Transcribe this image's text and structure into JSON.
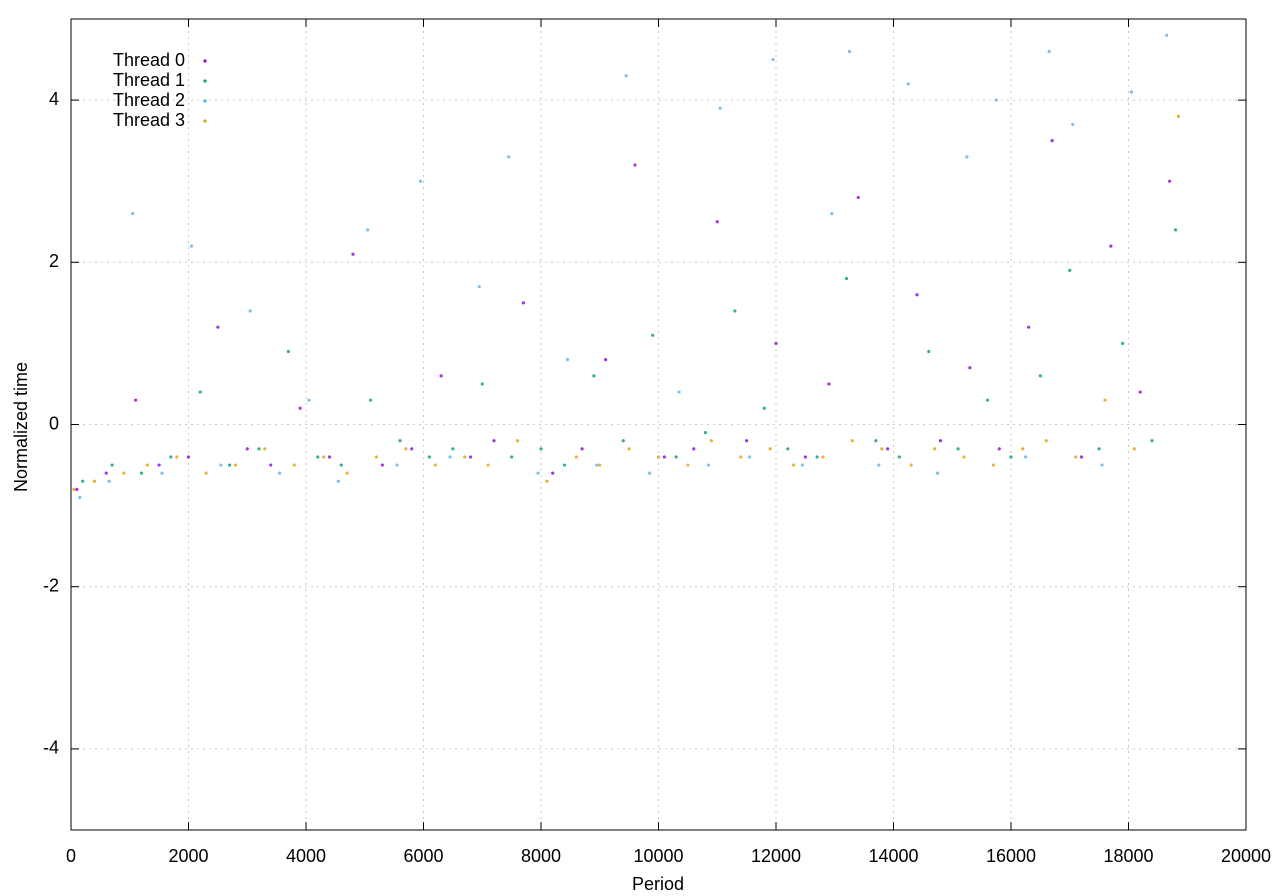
{
  "chart_data": {
    "type": "scatter",
    "xlabel": "Period",
    "ylabel": "Normalized time",
    "xlim": [
      0,
      20000
    ],
    "ylim": [
      -5,
      5
    ],
    "xticks": [
      0,
      2000,
      4000,
      6000,
      8000,
      10000,
      12000,
      14000,
      16000,
      18000,
      20000
    ],
    "yticks": [
      -4,
      -2,
      0,
      2,
      4
    ],
    "grid": true,
    "legend": "top-left",
    "series": [
      {
        "name": "Thread 0",
        "color": "#9400d3",
        "x": [
          100,
          600,
          1100,
          1500,
          2000,
          2500,
          3000,
          3400,
          3900,
          4400,
          4800,
          5300,
          5800,
          6300,
          6800,
          7200,
          7700,
          8200,
          8700,
          9100,
          9600,
          10100,
          10600,
          11000,
          11500,
          12000,
          12500,
          12900,
          13400,
          13900,
          14400,
          14800,
          15300,
          15800,
          16300,
          16700,
          17200,
          17700,
          18200,
          18700
        ],
        "values": [
          -0.8,
          -0.6,
          0.3,
          -0.5,
          -0.4,
          1.2,
          -0.3,
          -0.5,
          0.2,
          -0.4,
          2.1,
          -0.5,
          -0.3,
          0.6,
          -0.4,
          -0.2,
          1.5,
          -0.6,
          -0.3,
          0.8,
          3.2,
          -0.4,
          -0.3,
          2.5,
          -0.2,
          1.0,
          -0.4,
          0.5,
          2.8,
          -0.3,
          1.6,
          -0.2,
          0.7,
          -0.3,
          1.2,
          3.5,
          -0.4,
          2.2,
          0.4,
          3.0
        ]
      },
      {
        "name": "Thread 1",
        "color": "#009e73",
        "x": [
          200,
          700,
          1200,
          1700,
          2200,
          2700,
          3200,
          3700,
          4200,
          4600,
          5100,
          5600,
          6100,
          6500,
          7000,
          7500,
          8000,
          8400,
          8900,
          9400,
          9900,
          10300,
          10800,
          11300,
          11800,
          12200,
          12700,
          13200,
          13700,
          14100,
          14600,
          15100,
          15600,
          16000,
          16500,
          17000,
          17500,
          17900,
          18400,
          18800
        ],
        "values": [
          -0.7,
          -0.5,
          -0.6,
          -0.4,
          0.4,
          -0.5,
          -0.3,
          0.9,
          -0.4,
          -0.5,
          0.3,
          -0.2,
          -0.4,
          -0.3,
          0.5,
          -0.4,
          -0.3,
          -0.5,
          0.6,
          -0.2,
          1.1,
          -0.4,
          -0.1,
          1.4,
          0.2,
          -0.3,
          -0.4,
          1.8,
          -0.2,
          -0.4,
          0.9,
          -0.3,
          0.3,
          -0.4,
          0.6,
          1.9,
          -0.3,
          1.0,
          -0.2,
          2.4
        ]
      },
      {
        "name": "Thread 2",
        "color": "#56b4e9",
        "x": [
          150,
          650,
          1050,
          1550,
          2050,
          2550,
          3050,
          3550,
          4050,
          4550,
          5050,
          5550,
          5950,
          6450,
          6950,
          7450,
          7950,
          8450,
          8950,
          9450,
          9850,
          10350,
          10850,
          11050,
          11550,
          11950,
          12450,
          12950,
          13250,
          13750,
          14250,
          14750,
          15250,
          15750,
          16250,
          16650,
          17050,
          17550,
          18050,
          18650
        ],
        "values": [
          -0.9,
          -0.7,
          2.6,
          -0.6,
          2.2,
          -0.5,
          1.4,
          -0.6,
          0.3,
          -0.7,
          2.4,
          -0.5,
          3.0,
          -0.4,
          1.7,
          3.3,
          -0.6,
          0.8,
          -0.5,
          4.3,
          -0.6,
          0.4,
          -0.5,
          3.9,
          -0.4,
          4.5,
          -0.5,
          2.6,
          4.6,
          -0.5,
          4.2,
          -0.6,
          3.3,
          4.0,
          -0.4,
          4.6,
          3.7,
          -0.5,
          4.1,
          4.8
        ]
      },
      {
        "name": "Thread 3",
        "color": "#e69f00",
        "x": [
          50,
          400,
          900,
          1300,
          1800,
          2300,
          2800,
          3300,
          3800,
          4300,
          4700,
          5200,
          5700,
          6200,
          6700,
          7100,
          7600,
          8100,
          8600,
          9000,
          9500,
          10000,
          10500,
          10900,
          11400,
          11900,
          12300,
          12800,
          13300,
          13800,
          14300,
          14700,
          15200,
          15700,
          16200,
          16600,
          17100,
          17600,
          18100,
          18850
        ],
        "values": [
          -0.8,
          -0.7,
          -0.6,
          -0.5,
          -0.4,
          -0.6,
          -0.5,
          -0.3,
          -0.5,
          -0.4,
          -0.6,
          -0.4,
          -0.3,
          -0.5,
          -0.4,
          -0.5,
          -0.2,
          -0.7,
          -0.4,
          -0.5,
          -0.3,
          -0.4,
          -0.5,
          -0.2,
          -0.4,
          -0.3,
          -0.5,
          -0.4,
          -0.2,
          -0.3,
          -0.5,
          -0.3,
          -0.4,
          -0.5,
          -0.3,
          -0.2,
          -0.4,
          0.3,
          -0.3,
          3.8
        ]
      }
    ]
  }
}
